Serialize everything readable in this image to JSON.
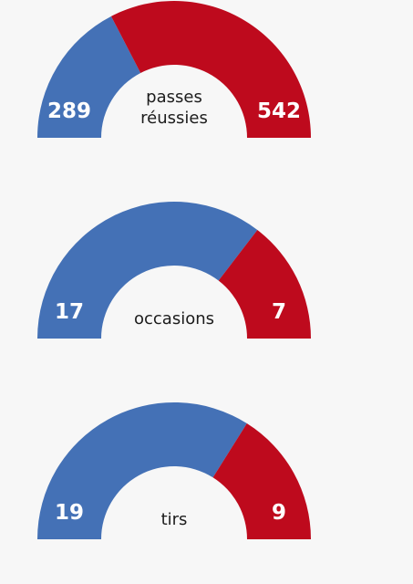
{
  "colors": {
    "team_a": "#4471b6",
    "team_b": "#be0a1d",
    "background": "#f7f7f7"
  },
  "chart_data": [
    {
      "type": "pie",
      "label_lines": [
        "passes",
        "réussies"
      ],
      "values": [
        289,
        542
      ]
    },
    {
      "type": "pie",
      "label_lines": [
        "occasions"
      ],
      "values": [
        17,
        7
      ]
    },
    {
      "type": "pie",
      "label_lines": [
        "tirs"
      ],
      "values": [
        19,
        9
      ]
    }
  ]
}
